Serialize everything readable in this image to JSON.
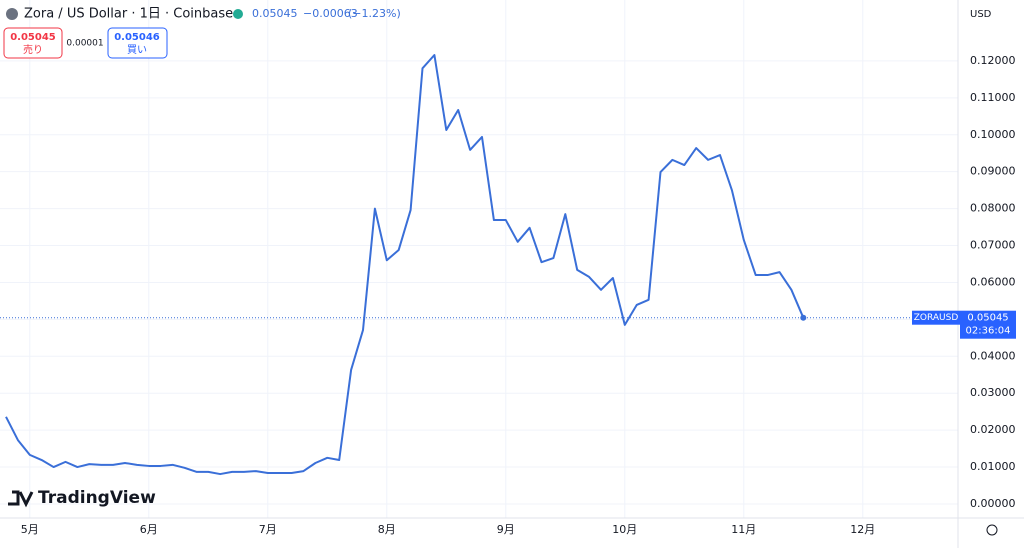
{
  "chart_data": {
    "type": "line",
    "title": "Zora / US Dollar · 1日 · Coinbase",
    "currency": "USD",
    "color": "#3a6fd8",
    "grid": true,
    "last_price": 0.05045,
    "symbol": "ZORAUSD",
    "countdown": "02:36:04",
    "categories": [
      null,
      null,
      "5月",
      null,
      null,
      null,
      null,
      null,
      null,
      null,
      null,
      null,
      "6月",
      null,
      null,
      null,
      null,
      null,
      null,
      null,
      null,
      null,
      "7月",
      null,
      null,
      null,
      null,
      null,
      null,
      null,
      null,
      null,
      "8月",
      null,
      null,
      null,
      null,
      null,
      null,
      null,
      null,
      null,
      "9月",
      null,
      null,
      null,
      null,
      null,
      null,
      null,
      null,
      null,
      "10月",
      null,
      null,
      null,
      null,
      null,
      null,
      null,
      null,
      null,
      "11月",
      null,
      null,
      null,
      null,
      null,
      null,
      null,
      null,
      null,
      "12月",
      null,
      null,
      null,
      null,
      null,
      null,
      null,
      null
    ],
    "values": [
      0.0236,
      0.0173,
      0.0133,
      0.0119,
      0.01,
      0.0114,
      0.01,
      0.0108,
      0.0106,
      0.0106,
      0.0111,
      0.0106,
      0.0103,
      0.0103,
      0.0106,
      0.0098,
      0.0087,
      0.0087,
      0.0081,
      0.0087,
      0.0087,
      0.0089,
      0.0084,
      0.0084,
      0.0084,
      0.0089,
      0.0111,
      0.0125,
      0.0119,
      0.0363,
      0.0471,
      0.08,
      0.066,
      0.0688,
      0.0796,
      0.118,
      0.1216,
      0.1013,
      0.1067,
      0.0959,
      0.0994,
      0.0769,
      0.0769,
      0.071,
      0.0748,
      0.0655,
      0.0666,
      0.0785,
      0.0634,
      0.0615,
      0.058,
      0.0612,
      0.0485,
      0.0539,
      0.0553,
      0.0899,
      0.0932,
      0.0918,
      0.0964,
      0.0932,
      0.0945,
      0.085,
      0.0715,
      0.062,
      0.062,
      0.0628,
      0.058,
      0.05045,
      null,
      null,
      null,
      null,
      null,
      null,
      null,
      null,
      null,
      null,
      null,
      null,
      null
    ],
    "ylim": [
      -0.0038,
      0.1365
    ],
    "yticks": [
      {
        "value": 0,
        "label": "0.00000"
      },
      {
        "value": 0.01,
        "label": "0.01000"
      },
      {
        "value": 0.02,
        "label": "0.02000"
      },
      {
        "value": 0.03,
        "label": "0.03000"
      },
      {
        "value": 0.04,
        "label": "0.04000"
      },
      {
        "value": 0.05,
        "label": "0.05000"
      },
      {
        "value": 0.06,
        "label": "0.06000"
      },
      {
        "value": 0.07,
        "label": "0.07000"
      },
      {
        "value": 0.08,
        "label": "0.08000"
      },
      {
        "value": 0.09,
        "label": "0.09000"
      },
      {
        "value": 0.1,
        "label": "0.10000"
      },
      {
        "value": 0.11,
        "label": "0.11000"
      },
      {
        "value": 0.12,
        "label": "0.12000"
      }
    ]
  },
  "header": {
    "change": "−0.00063",
    "change_pct": "(−1.23%)",
    "sell_price": "0.05045",
    "sell_label": "売り",
    "spread": "0.00001",
    "buy_price": "0.05046",
    "buy_label": "買い",
    "brand": "TradingView"
  }
}
